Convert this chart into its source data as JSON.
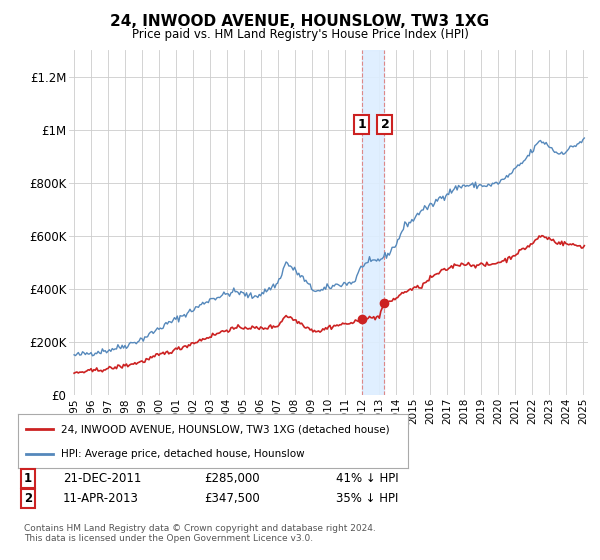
{
  "title": "24, INWOOD AVENUE, HOUNSLOW, TW3 1XG",
  "subtitle": "Price paid vs. HM Land Registry's House Price Index (HPI)",
  "legend_line1": "24, INWOOD AVENUE, HOUNSLOW, TW3 1XG (detached house)",
  "legend_line2": "HPI: Average price, detached house, Hounslow",
  "footnote": "Contains HM Land Registry data © Crown copyright and database right 2024.\nThis data is licensed under the Open Government Licence v3.0.",
  "annotation1_label": "1",
  "annotation1_date": "21-DEC-2011",
  "annotation1_price": "£285,000",
  "annotation1_hpi": "41% ↓ HPI",
  "annotation2_label": "2",
  "annotation2_date": "11-APR-2013",
  "annotation2_price": "£347,500",
  "annotation2_hpi": "35% ↓ HPI",
  "hpi_color": "#5588bb",
  "price_color": "#cc2222",
  "annotation_color": "#cc2222",
  "vline_color": "#dd8888",
  "shade_color": "#ddeeff",
  "ylim": [
    0,
    1300000
  ],
  "yticks": [
    0,
    200000,
    400000,
    600000,
    800000,
    1000000,
    1200000
  ],
  "ytick_labels": [
    "£0",
    "£200K",
    "£400K",
    "£600K",
    "£800K",
    "£1M",
    "£1.2M"
  ],
  "sale1_x": 2012.0,
  "sale1_y": 285000,
  "sale2_x": 2013.28,
  "sale2_y": 347500,
  "xlim_left": 1994.7,
  "xlim_right": 2025.3
}
